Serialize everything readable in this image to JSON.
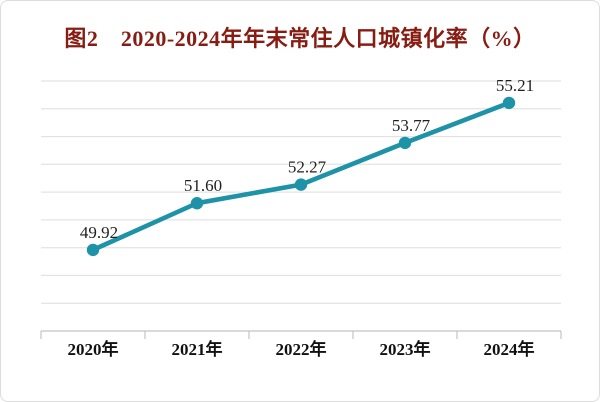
{
  "title": "图2　2020-2024年年末常住人口城镇化率（%）",
  "colors": {
    "title": "#871c12",
    "line": "#1e93a8",
    "marker": "#1e93a8",
    "grid": "#dedede",
    "axis": "#c6c2c0",
    "tick": "#c6c2c0",
    "value_label": "#1f1f1f",
    "x_label": "#111111",
    "background": "#ffffff",
    "border": "#dcdcdc"
  },
  "chart_data": {
    "type": "line",
    "title": "图2　2020-2024年年末常住人口城镇化率（%）",
    "categories": [
      "2020年",
      "2021年",
      "2022年",
      "2023年",
      "2024年"
    ],
    "values": [
      49.92,
      51.6,
      52.27,
      53.77,
      55.21
    ],
    "value_labels": [
      "49.92",
      "51.60",
      "52.27",
      "53.77",
      "55.21"
    ],
    "xlabel": "",
    "ylabel": "",
    "ylim": [
      47,
      56
    ],
    "grid_step": 1,
    "grid": true,
    "y_tick_labels_shown": false,
    "legend_position": "none"
  }
}
